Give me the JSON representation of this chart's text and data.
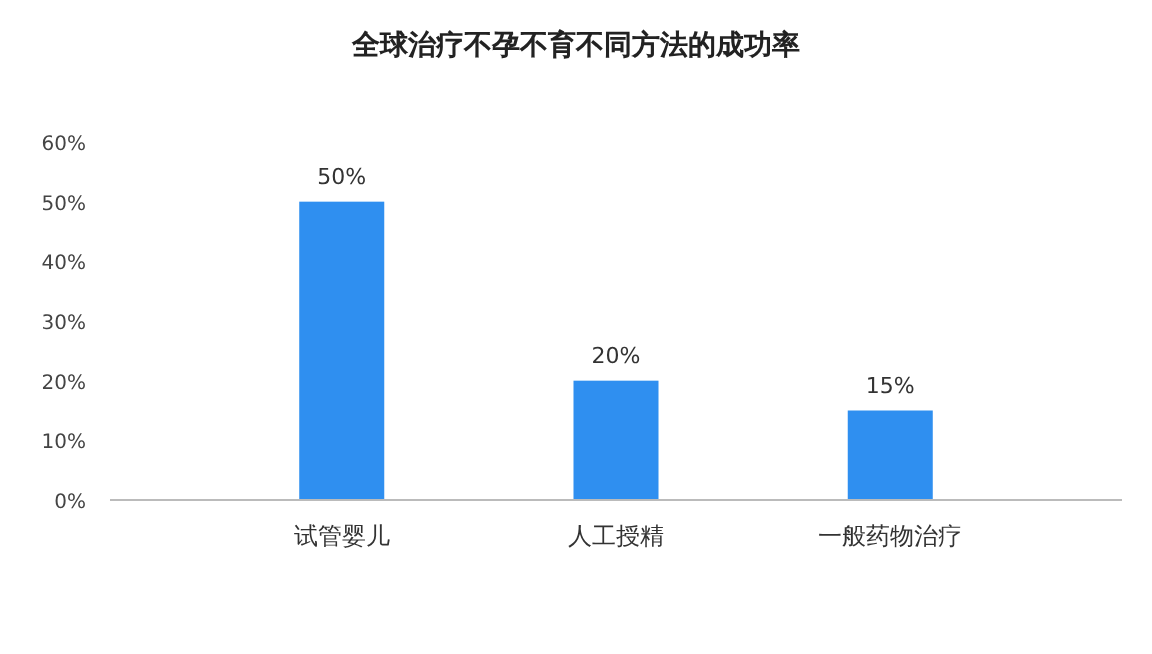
{
  "chart_data": {
    "type": "bar",
    "title": "全球治疗不孕不育不同方法的成功率",
    "categories": [
      "试管婴儿",
      "人工授精",
      "一般药物治疗"
    ],
    "values": [
      50,
      20,
      15
    ],
    "value_labels": [
      "50%",
      "20%",
      "15%"
    ],
    "color": "#2f8ff0",
    "ylim": [
      0,
      60
    ],
    "yticks": [
      {
        "value": 0,
        "label": "0%"
      },
      {
        "value": 10,
        "label": "10%"
      },
      {
        "value": 20,
        "label": "20%"
      },
      {
        "value": 30,
        "label": "30%"
      },
      {
        "value": 40,
        "label": "40%"
      },
      {
        "value": 50,
        "label": "50%"
      },
      {
        "value": 60,
        "label": "60%"
      }
    ],
    "grid": false
  }
}
